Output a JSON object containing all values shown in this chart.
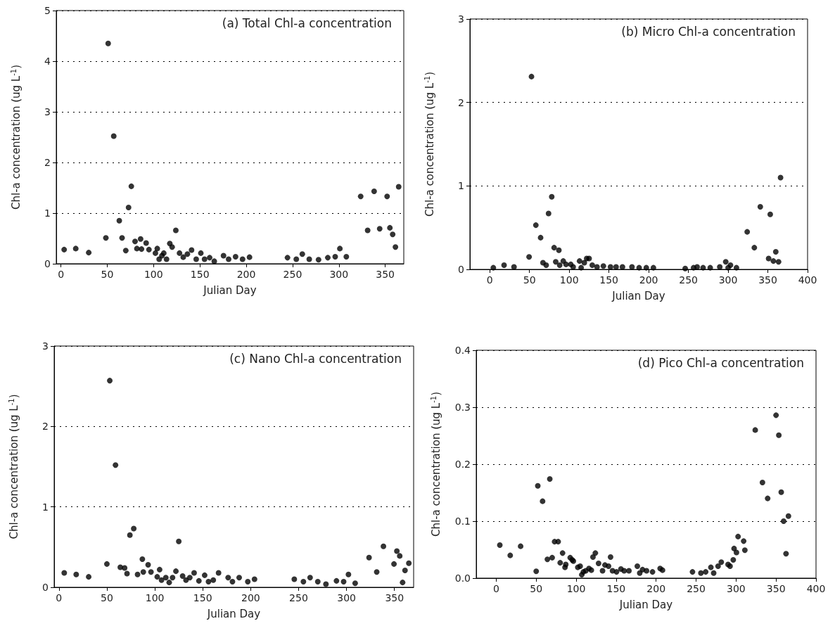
{
  "chart_data": [
    {
      "type": "scatter",
      "title": "(a) Total Chl-a concentration",
      "xlabel": "Julian Day",
      "ylabel": "Chl-a concentration (ug L$^{-1}$)",
      "xlim": [
        -5,
        370
      ],
      "xticks": [
        0,
        50,
        100,
        150,
        200,
        250,
        300,
        350
      ],
      "ylim": [
        0,
        5
      ],
      "yticks": [
        0,
        1,
        2,
        3,
        4,
        5
      ],
      "grid": "y",
      "marker": "circle",
      "color": "#000000",
      "x": [
        3.5,
        16,
        30,
        48.5,
        51,
        57,
        63,
        66,
        70,
        73,
        76,
        80,
        82,
        86,
        87,
        92,
        95,
        104,
        102,
        106,
        109,
        111,
        114,
        117.5,
        120,
        124,
        128,
        132,
        136.5,
        141,
        146,
        151,
        155,
        160.5,
        165.5,
        175.5,
        181,
        188.5,
        196,
        203.5,
        244.5,
        254,
        260.5,
        268,
        278,
        288,
        296,
        301,
        308,
        323.5,
        331,
        338,
        344,
        352,
        355,
        358,
        361,
        364.5
      ],
      "values": [
        0.28,
        0.3,
        0.22,
        0.51,
        4.35,
        2.52,
        0.85,
        0.51,
        0.26,
        1.11,
        1.53,
        0.44,
        0.3,
        0.49,
        0.29,
        0.41,
        0.28,
        0.3,
        0.21,
        0.09,
        0.16,
        0.21,
        0.09,
        0.4,
        0.33,
        0.66,
        0.21,
        0.13,
        0.19,
        0.27,
        0.09,
        0.21,
        0.09,
        0.12,
        0.05,
        0.16,
        0.09,
        0.14,
        0.09,
        0.13,
        0.12,
        0.09,
        0.19,
        0.09,
        0.08,
        0.12,
        0.14,
        0.3,
        0.14,
        1.33,
        0.66,
        1.43,
        0.69,
        1.33,
        0.71,
        0.58,
        0.33,
        1.52
      ]
    },
    {
      "type": "scatter",
      "title": "(b) Micro Chl-a concentration",
      "xlabel": "Julian Day",
      "ylabel": "Chl-a concentration (ug L$^{-1}$)",
      "xlim": [
        -25,
        400
      ],
      "xticks": [
        0,
        50,
        100,
        150,
        200,
        250,
        300,
        350,
        400
      ],
      "ylim": [
        0,
        3
      ],
      "yticks": [
        0,
        1,
        2,
        3
      ],
      "grid": "y",
      "marker": "circle",
      "color": "#000000",
      "x": [
        4.5,
        18,
        30.5,
        49.5,
        52.5,
        58,
        64,
        67,
        71,
        74,
        78,
        81,
        83,
        87,
        88,
        92.5,
        96,
        102,
        105,
        113,
        115,
        119,
        122,
        125,
        129,
        135,
        143,
        152,
        159,
        167,
        179,
        188,
        197,
        206,
        246,
        256.5,
        261,
        268.5,
        277.5,
        289.5,
        297,
        300,
        303,
        310.5,
        324,
        333,
        340.5,
        351,
        353,
        357,
        360,
        363.5,
        366
      ],
      "values": [
        0.02,
        0.05,
        0.03,
        0.15,
        2.31,
        0.53,
        0.38,
        0.08,
        0.05,
        0.67,
        0.87,
        0.26,
        0.09,
        0.23,
        0.05,
        0.1,
        0.06,
        0.06,
        0.03,
        0.1,
        0.02,
        0.08,
        0.13,
        0.13,
        0.05,
        0.03,
        0.04,
        0.03,
        0.03,
        0.03,
        0.03,
        0.02,
        0.02,
        0.02,
        0.01,
        0.02,
        0.03,
        0.02,
        0.02,
        0.03,
        0.09,
        0.02,
        0.05,
        0.02,
        0.45,
        0.26,
        0.75,
        0.13,
        0.66,
        0.1,
        0.21,
        0.09,
        1.1
      ]
    },
    {
      "type": "scatter",
      "title": "(c) Nano Chl-a concentration",
      "xlabel": "Julian Day",
      "ylabel": "Chl-a concentration (ug L$^{-1}$)",
      "xlim": [
        -5,
        370
      ],
      "xticks": [
        0,
        50,
        100,
        150,
        200,
        250,
        300,
        350
      ],
      "ylim": [
        0,
        3
      ],
      "yticks": [
        0,
        1,
        2,
        3
      ],
      "grid": "y",
      "marker": "circle",
      "color": "#000000",
      "x": [
        5.5,
        18,
        31,
        50,
        53,
        59,
        64,
        68.5,
        71,
        74,
        78,
        82,
        87,
        88,
        93,
        96,
        102.5,
        105,
        107,
        111.5,
        115,
        118.5,
        122,
        125,
        129,
        132.5,
        136.5,
        141,
        146,
        152,
        156,
        161,
        166.5,
        176.5,
        181,
        188,
        197,
        204,
        245.5,
        255,
        262,
        270,
        278.5,
        289.5,
        297,
        302,
        309,
        323.5,
        331.5,
        338.5,
        349.5,
        352.5,
        355.5,
        358.5,
        361,
        365
      ],
      "values": [
        0.18,
        0.16,
        0.13,
        0.29,
        2.57,
        1.52,
        0.25,
        0.24,
        0.17,
        0.65,
        0.73,
        0.16,
        0.35,
        0.19,
        0.28,
        0.19,
        0.13,
        0.22,
        0.09,
        0.12,
        0.06,
        0.12,
        0.2,
        0.57,
        0.14,
        0.09,
        0.12,
        0.18,
        0.08,
        0.15,
        0.07,
        0.09,
        0.18,
        0.12,
        0.07,
        0.12,
        0.07,
        0.1,
        0.1,
        0.07,
        0.12,
        0.07,
        0.04,
        0.08,
        0.07,
        0.16,
        0.05,
        0.37,
        0.19,
        0.51,
        0.29,
        0.45,
        0.39,
        0.06,
        0.21,
        0.3
      ]
    },
    {
      "type": "scatter",
      "title": "(d) Pico Chl-a concentration",
      "xlabel": "Julian Day",
      "ylabel": "Chl-a concentration (ug L$^{-1}$)",
      "xlim": [
        -25,
        400
      ],
      "xticks": [
        0,
        50,
        100,
        150,
        200,
        250,
        300,
        350,
        400
      ],
      "ylim": [
        0,
        0.4
      ],
      "yticks": [
        {
          "value": 0,
          "label": "0.0"
        },
        0.1,
        0.2,
        0.3,
        0.4
      ],
      "grid": "y",
      "marker": "circle",
      "color": "#000000",
      "x": [
        4.5,
        17.5,
        30.5,
        50,
        52,
        58,
        64,
        67,
        70,
        73,
        77.5,
        80,
        83,
        86,
        87,
        92.5,
        95,
        96.5,
        102,
        105,
        107,
        109,
        112,
        116,
        119,
        121,
        124,
        128,
        133,
        136,
        140.5,
        143,
        145.5,
        150.5,
        156,
        160,
        166,
        176.5,
        179.5,
        183,
        188,
        195.5,
        205,
        208,
        245.5,
        256,
        262,
        268.5,
        272,
        277.5,
        281.5,
        290,
        292.5,
        296.5,
        297.5,
        300.5,
        302.5,
        309.5,
        311,
        324,
        333,
        339.5,
        350,
        353.5,
        356.5,
        359.5,
        362.5,
        365.5
      ],
      "values": [
        0.058,
        0.04,
        0.056,
        0.012,
        0.162,
        0.135,
        0.033,
        0.174,
        0.036,
        0.064,
        0.064,
        0.027,
        0.044,
        0.019,
        0.024,
        0.036,
        0.032,
        0.03,
        0.019,
        0.021,
        0.006,
        0.011,
        0.013,
        0.017,
        0.014,
        0.037,
        0.044,
        0.026,
        0.013,
        0.023,
        0.021,
        0.037,
        0.013,
        0.011,
        0.016,
        0.013,
        0.013,
        0.021,
        0.009,
        0.015,
        0.013,
        0.011,
        0.017,
        0.014,
        0.011,
        0.009,
        0.011,
        0.019,
        0.009,
        0.021,
        0.028,
        0.024,
        0.021,
        0.032,
        0.052,
        0.045,
        0.073,
        0.065,
        0.049,
        0.26,
        0.168,
        0.14,
        0.286,
        0.251,
        0.151,
        0.1,
        0.043,
        0.109
      ]
    }
  ]
}
